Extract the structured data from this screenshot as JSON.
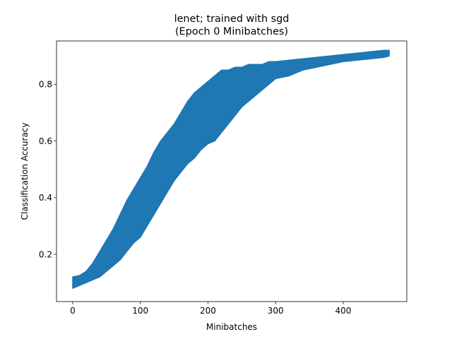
{
  "chart_data": {
    "type": "area",
    "title_line1": "lenet; trained with sgd",
    "title_line2": "(Epoch 0 Minibatches)",
    "xlabel": "Minibatches",
    "ylabel": "Classification Accuracy",
    "xlim": [
      -24,
      494
    ],
    "ylim": [
      0.033,
      0.953
    ],
    "xticks": [
      0,
      100,
      200,
      300,
      400
    ],
    "xtick_labels": [
      "0",
      "100",
      "200",
      "300",
      "400"
    ],
    "yticks": [
      0.2,
      0.4,
      0.6,
      0.8
    ],
    "ytick_labels": [
      "0.2",
      "0.4",
      "0.6",
      "0.8"
    ],
    "grid": false,
    "color": "#1f77b4",
    "series": [
      {
        "x": [
          0,
          10,
          20,
          30,
          40,
          50,
          60,
          70,
          80,
          90,
          100,
          110,
          120,
          130,
          140,
          150,
          160,
          170,
          180,
          190,
          200,
          210,
          220,
          230,
          240,
          250,
          260,
          270,
          280,
          290,
          300,
          320,
          340,
          360,
          380,
          400,
          420,
          440,
          460,
          468
        ],
        "upper": [
          0.12,
          0.125,
          0.14,
          0.17,
          0.21,
          0.25,
          0.29,
          0.34,
          0.39,
          0.43,
          0.47,
          0.51,
          0.56,
          0.6,
          0.63,
          0.66,
          0.7,
          0.74,
          0.77,
          0.79,
          0.81,
          0.83,
          0.85,
          0.85,
          0.86,
          0.86,
          0.87,
          0.87,
          0.87,
          0.88,
          0.88,
          0.885,
          0.89,
          0.895,
          0.9,
          0.905,
          0.91,
          0.915,
          0.92,
          0.92
        ],
        "lower": [
          0.08,
          0.09,
          0.1,
          0.11,
          0.12,
          0.14,
          0.16,
          0.18,
          0.21,
          0.24,
          0.26,
          0.3,
          0.34,
          0.38,
          0.42,
          0.46,
          0.49,
          0.52,
          0.54,
          0.57,
          0.59,
          0.6,
          0.63,
          0.66,
          0.69,
          0.72,
          0.74,
          0.76,
          0.78,
          0.8,
          0.82,
          0.83,
          0.85,
          0.86,
          0.87,
          0.88,
          0.885,
          0.89,
          0.895,
          0.9
        ]
      }
    ]
  }
}
